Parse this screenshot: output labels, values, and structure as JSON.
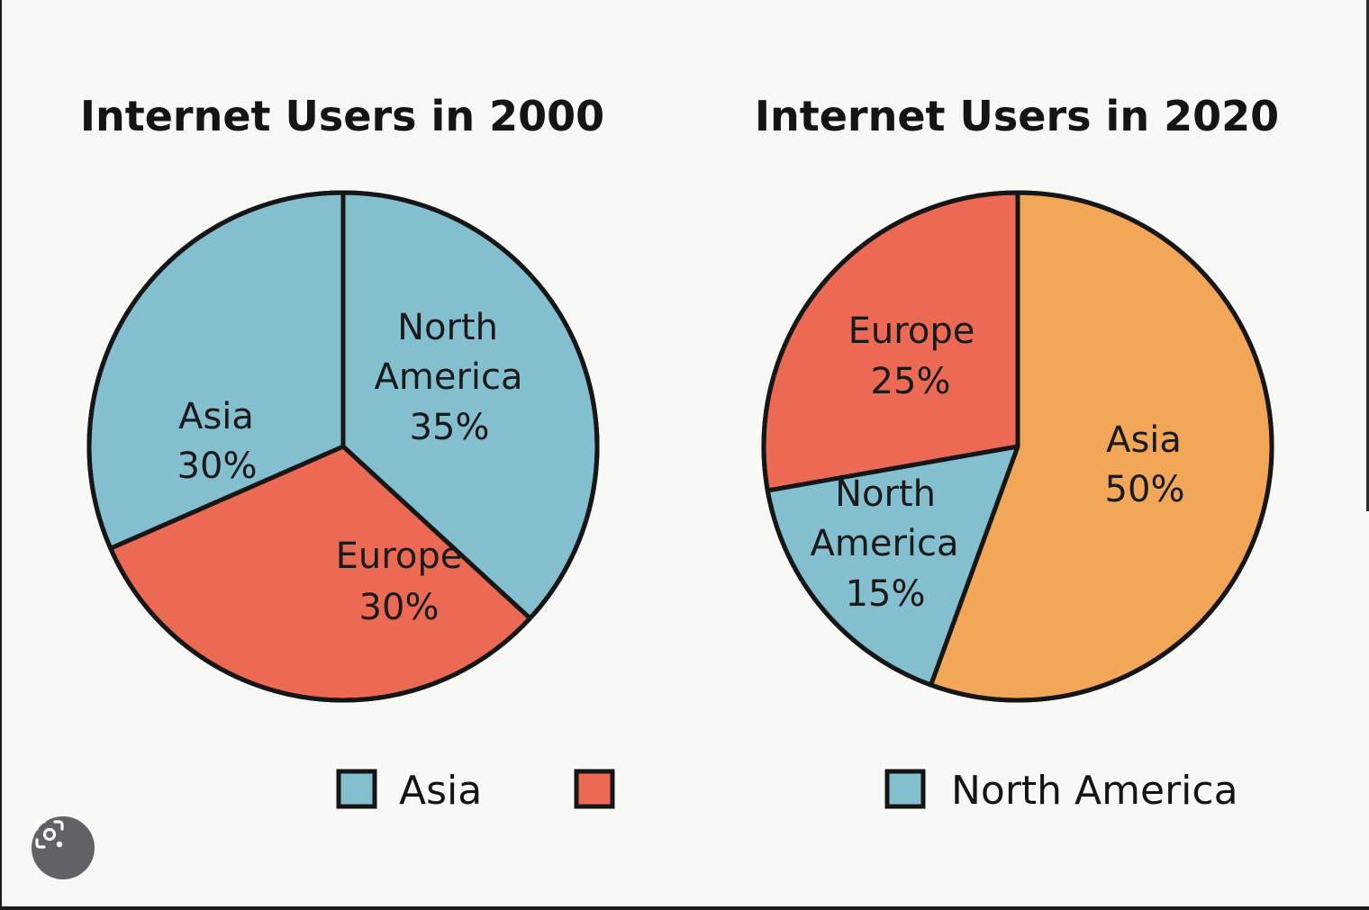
{
  "colors": {
    "Asia_2000": "#84bfd0",
    "North America": "#84bfd0",
    "Europe": "#ec6a54",
    "Asia_2020": "#f2a658",
    "outline": "#161616"
  },
  "chart_data": [
    {
      "type": "pie",
      "title": "Internet Users in 2000",
      "slices": [
        {
          "label": "North",
          "label2": "America",
          "pct_text": "35%",
          "value": 35,
          "color": "#84bfd0"
        },
        {
          "label": "Europe",
          "label2": "",
          "pct_text": "30%",
          "value": 30,
          "color": "#ec6a54"
        },
        {
          "label": "Asia",
          "label2": "",
          "pct_text": "30%",
          "value": 30,
          "color": "#84bfd0"
        }
      ],
      "start": "12 o'clock, clockwise",
      "note": "Printed percentages sum to 95%"
    },
    {
      "type": "pie",
      "title": "Internet Users in 2020",
      "slices": [
        {
          "label": "Asia",
          "label2": "",
          "pct_text": "50%",
          "value": 50,
          "color": "#f2a658"
        },
        {
          "label": "North",
          "label2": "America",
          "pct_text": "15%",
          "value": 15,
          "color": "#84bfd0"
        },
        {
          "label": "Europe",
          "label2": "",
          "pct_text": "25%",
          "value": 25,
          "color": "#ec6a54"
        }
      ],
      "start": "12 o'clock, clockwise",
      "note": "Printed percentages sum to 90%"
    }
  ],
  "legend": [
    {
      "label": "Asia",
      "color": "#84bfd0"
    },
    {
      "label": "",
      "color": "#ec6a54"
    },
    {
      "label": "North America",
      "color": "#84bfd0"
    }
  ],
  "lens_button": {
    "icon": "visual-search-icon"
  }
}
